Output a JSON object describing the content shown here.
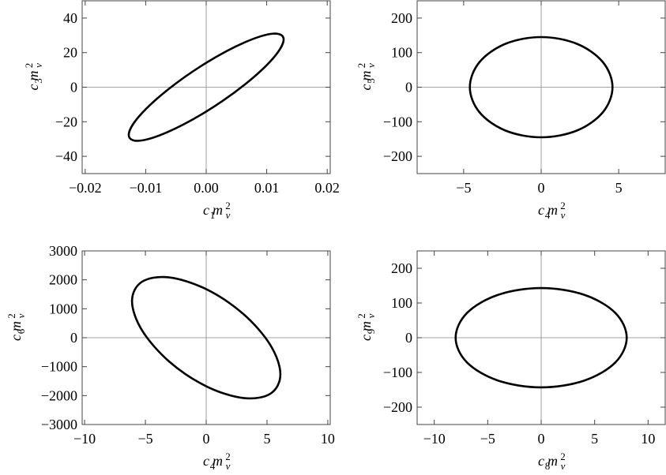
{
  "chart_data": [
    {
      "type": "line",
      "closed": true,
      "color": "#000000",
      "zero_lines": true,
      "xlabel": [
        {
          "text": "c",
          "pos": "base"
        },
        {
          "text": "1",
          "pos": "sub"
        },
        {
          "text": "m",
          "pos": "base"
        },
        {
          "text": "2",
          "pos": "sup"
        },
        {
          "text": "v",
          "pos": "sub"
        }
      ],
      "ylabel": [
        {
          "text": "c",
          "pos": "base"
        },
        {
          "text": "3",
          "pos": "sub"
        },
        {
          "text": "m",
          "pos": "base"
        },
        {
          "text": "2",
          "pos": "sup"
        },
        {
          "text": "v",
          "pos": "sub"
        }
      ],
      "xlim": [
        -0.0205,
        0.0205
      ],
      "xticks": [
        {
          "value": -0.02,
          "label": "−0.02"
        },
        {
          "value": -0.01,
          "label": "−0.01"
        },
        {
          "value": 0,
          "label": "0.00"
        },
        0.01,
        0.02
      ],
      "ylim": [
        -50,
        50
      ],
      "yticks": [
        {
          "value": -40,
          "label": "−40"
        },
        {
          "value": -20,
          "label": "−20"
        },
        0,
        20,
        40
      ],
      "x": [
        0.0128,
        0.0111,
        0.0064,
        0,
        -0.0064,
        -0.0111,
        -0.0128,
        -0.0111,
        -0.0064,
        0,
        0.0064,
        0.0111
      ],
      "values": [
        27.6,
        31.0,
        26.0,
        14.1,
        -1.6,
        -16.9,
        -27.6,
        -31.0,
        -26.0,
        -14.1,
        1.6,
        16.9
      ]
    },
    {
      "type": "line",
      "closed": true,
      "color": "#000000",
      "zero_lines": true,
      "xlabel": [
        {
          "text": "c",
          "pos": "base"
        },
        {
          "text": "4",
          "pos": "sub"
        },
        {
          "text": "m",
          "pos": "base"
        },
        {
          "text": "2",
          "pos": "sup"
        },
        {
          "text": "v",
          "pos": "sub"
        }
      ],
      "ylabel": [
        {
          "text": "c",
          "pos": "base"
        },
        {
          "text": "5",
          "pos": "sub"
        },
        {
          "text": "m",
          "pos": "base"
        },
        {
          "text": "2",
          "pos": "sup"
        },
        {
          "text": "v",
          "pos": "sub"
        }
      ],
      "xlim": [
        -8,
        8
      ],
      "xticks": [
        {
          "value": -5,
          "label": "−5"
        },
        0,
        5
      ],
      "ylim": [
        -250,
        250
      ],
      "yticks": [
        {
          "value": -200,
          "label": "−200"
        },
        {
          "value": -100,
          "label": "−100"
        },
        0,
        100,
        200
      ],
      "x": [
        4.6,
        3.98,
        2.3,
        0,
        -2.3,
        -3.98,
        -4.6,
        -3.98,
        -2.3,
        0,
        2.3,
        3.98
      ],
      "values": [
        0,
        72.5,
        125.6,
        145,
        125.6,
        72.5,
        0,
        -72.5,
        -125.6,
        -145,
        -125.6,
        -72.5
      ]
    },
    {
      "type": "line",
      "closed": true,
      "color": "#000000",
      "zero_lines": true,
      "xlabel": [
        {
          "text": "c",
          "pos": "base"
        },
        {
          "text": "4",
          "pos": "sub"
        },
        {
          "text": "m",
          "pos": "base"
        },
        {
          "text": "2",
          "pos": "sup"
        },
        {
          "text": "v",
          "pos": "sub"
        }
      ],
      "ylabel": [
        {
          "text": "c",
          "pos": "base"
        },
        {
          "text": "6",
          "pos": "sub"
        },
        {
          "text": "m",
          "pos": "base"
        },
        {
          "text": "2",
          "pos": "sup"
        },
        {
          "text": "v",
          "pos": "sub"
        }
      ],
      "xlim": [
        -10.2,
        10.2
      ],
      "xticks": [
        {
          "value": -10,
          "label": "−10"
        },
        {
          "value": -5,
          "label": "−5"
        },
        0,
        5,
        10
      ],
      "ylim": [
        -3000,
        3000
      ],
      "yticks": [
        {
          "value": -3000,
          "label": "−3000"
        },
        {
          "value": -2000,
          "label": "−2000"
        },
        {
          "value": -1000,
          "label": "−1000"
        },
        0,
        1000,
        2000,
        3000
      ],
      "x": [
        6.1,
        5.28,
        3.05,
        0,
        -3.05,
        -5.28,
        -6.1,
        -5.28,
        -3.05,
        0,
        3.05,
        5.28
      ],
      "values": [
        -1264,
        -256,
        821,
        1678,
        2085,
        1934,
        1264,
        256,
        -821,
        -1678,
        -2085,
        -1934
      ]
    },
    {
      "type": "line",
      "closed": true,
      "color": "#000000",
      "zero_lines": true,
      "xlabel": [
        {
          "text": "c",
          "pos": "base"
        },
        {
          "text": "8",
          "pos": "sub"
        },
        {
          "text": "m",
          "pos": "base"
        },
        {
          "text": "2",
          "pos": "sup"
        },
        {
          "text": "v",
          "pos": "sub"
        }
      ],
      "ylabel": [
        {
          "text": "c",
          "pos": "base"
        },
        {
          "text": "9",
          "pos": "sub"
        },
        {
          "text": "m",
          "pos": "base"
        },
        {
          "text": "2",
          "pos": "sup"
        },
        {
          "text": "v",
          "pos": "sub"
        }
      ],
      "xlim": [
        -11.6,
        11.6
      ],
      "xticks": [
        {
          "value": -10,
          "label": "−10"
        },
        {
          "value": -5,
          "label": "−5"
        },
        0,
        5,
        10
      ],
      "ylim": [
        -250,
        250
      ],
      "yticks": [
        {
          "value": -200,
          "label": "−200"
        },
        {
          "value": -100,
          "label": "−100"
        },
        0,
        100,
        200
      ],
      "x": [
        8,
        6.93,
        4,
        0,
        -4,
        -6.93,
        -8,
        -6.93,
        -4,
        0,
        4,
        6.93
      ],
      "values": [
        0,
        71.5,
        123.8,
        143,
        123.8,
        71.5,
        0,
        -71.5,
        -123.8,
        -143,
        -123.8,
        -71.5
      ]
    }
  ]
}
